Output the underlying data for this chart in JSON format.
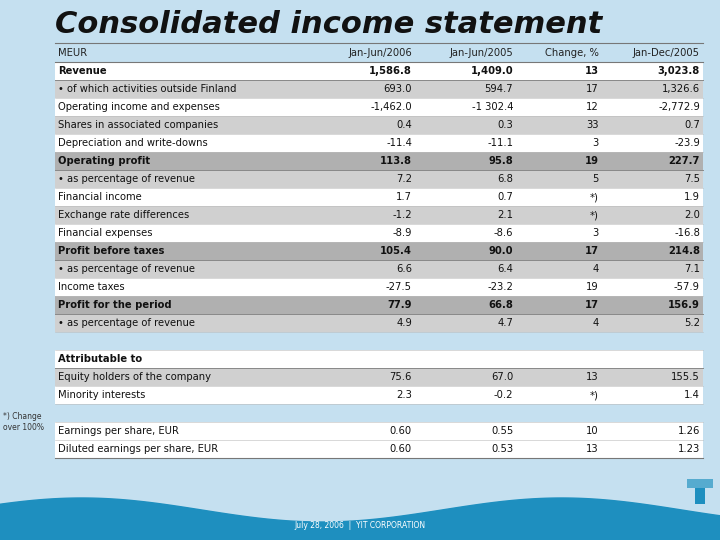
{
  "title": "Consolidated income statement",
  "title_fontsize": 22,
  "background_color": "#c5e0f0",
  "footer_text": "July 28, 2006  |  YIT CORPORATION",
  "footer_color": "#5599bb",
  "columns": [
    "MEUR",
    "Jan-Jun/2006",
    "Jan-Jun/2005",
    "Change, %",
    "Jan-Dec/2005"
  ],
  "rows": [
    {
      "label": "Revenue",
      "vals": [
        "1,586.8",
        "1,409.0",
        "13",
        "3,023.8"
      ],
      "bold": true,
      "bg": "white"
    },
    {
      "label": "• of which activities outside Finland",
      "vals": [
        "693.0",
        "594.7",
        "17",
        "1,326.6"
      ],
      "bold": false,
      "bg": "gray"
    },
    {
      "label": "Operating income and expenses",
      "vals": [
        "-1,462.0",
        "-1 302.4",
        "12",
        "-2,772.9"
      ],
      "bold": false,
      "bg": "white"
    },
    {
      "label": "Shares in associated companies",
      "vals": [
        "0.4",
        "0.3",
        "33",
        "0.7"
      ],
      "bold": false,
      "bg": "gray"
    },
    {
      "label": "Depreciation and write-downs",
      "vals": [
        "-11.4",
        "-11.1",
        "3",
        "-23.9"
      ],
      "bold": false,
      "bg": "white"
    },
    {
      "label": "Operating profit",
      "vals": [
        "113.8",
        "95.8",
        "19",
        "227.7"
      ],
      "bold": true,
      "bg": "bold_row"
    },
    {
      "label": "• as percentage of revenue",
      "vals": [
        "7.2",
        "6.8",
        "5",
        "7.5"
      ],
      "bold": false,
      "bg": "gray"
    },
    {
      "label": "Financial income",
      "vals": [
        "1.7",
        "0.7",
        "*)",
        "1.9"
      ],
      "bold": false,
      "bg": "white"
    },
    {
      "label": "Exchange rate differences",
      "vals": [
        "-1.2",
        "2.1",
        "*)",
        "2.0"
      ],
      "bold": false,
      "bg": "gray"
    },
    {
      "label": "Financial expenses",
      "vals": [
        "-8.9",
        "-8.6",
        "3",
        "-16.8"
      ],
      "bold": false,
      "bg": "white"
    },
    {
      "label": "Profit before taxes",
      "vals": [
        "105.4",
        "90.0",
        "17",
        "214.8"
      ],
      "bold": true,
      "bg": "bold_row"
    },
    {
      "label": "• as percentage of revenue",
      "vals": [
        "6.6",
        "6.4",
        "4",
        "7.1"
      ],
      "bold": false,
      "bg": "gray"
    },
    {
      "label": "Income taxes",
      "vals": [
        "-27.5",
        "-23.2",
        "19",
        "-57.9"
      ],
      "bold": false,
      "bg": "white"
    },
    {
      "label": "Profit for the period",
      "vals": [
        "77.9",
        "66.8",
        "17",
        "156.9"
      ],
      "bold": true,
      "bg": "bold_row"
    },
    {
      "label": "• as percentage of revenue",
      "vals": [
        "4.9",
        "4.7",
        "4",
        "5.2"
      ],
      "bold": false,
      "bg": "gray"
    },
    {
      "label": "",
      "vals": [
        "",
        "",
        "",
        ""
      ],
      "bold": false,
      "bg": "page"
    },
    {
      "label": "Attributable to",
      "vals": [
        "",
        "",
        "",
        ""
      ],
      "bold": true,
      "bg": "white"
    },
    {
      "label": "Equity holders of the company",
      "vals": [
        "75.6",
        "67.0",
        "13",
        "155.5"
      ],
      "bold": false,
      "bg": "gray"
    },
    {
      "label": "Minority interests",
      "vals": [
        "2.3",
        "-0.2",
        "*)",
        "1.4"
      ],
      "bold": false,
      "bg": "white"
    },
    {
      "label": "",
      "vals": [
        "",
        "",
        "",
        ""
      ],
      "bold": false,
      "bg": "page"
    },
    {
      "label": "Earnings per share, EUR",
      "vals": [
        "0.60",
        "0.55",
        "10",
        "1.26"
      ],
      "bold": false,
      "bg": "white"
    },
    {
      "label": "Diluted earnings per share, EUR",
      "vals": [
        "0.60",
        "0.53",
        "13",
        "1.23"
      ],
      "bold": false,
      "bg": "white"
    }
  ],
  "color_white": "#ffffff",
  "color_gray": "#d0d0d0",
  "color_bold_row": "#b0b0b0",
  "color_shade_col": "#b8d0e8",
  "wave_color": "#1e8fbf",
  "logo_color": "#1e8fbf"
}
